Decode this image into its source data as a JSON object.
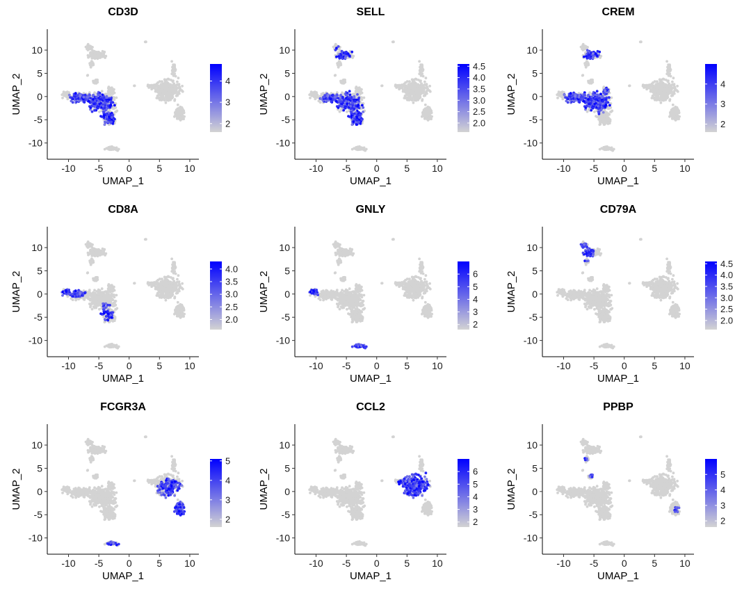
{
  "chart_data": {
    "type": "scatter",
    "subtype": "feature_plot_grid",
    "xlabel": "UMAP_1",
    "ylabel": "UMAP_2",
    "xlim": [
      -13.5,
      11.5
    ],
    "ylim": [
      -13.5,
      14.5
    ],
    "x_ticks": [
      -10,
      -5,
      0,
      5,
      10
    ],
    "y_ticks": [
      10,
      5,
      0,
      -5,
      -10
    ],
    "low_color": "#d3d3d3",
    "high_color": "#0000ff",
    "panels": [
      {
        "gene": "CD3D",
        "min": 1.6,
        "max": 4.8,
        "legend_ticks": [
          2,
          3,
          4
        ],
        "hot": [
          {
            "x": -6.5,
            "y": -2.0,
            "rx": 4.5,
            "ry": 3.5,
            "w": 0.65
          },
          {
            "x": -3.5,
            "y": -4.5,
            "rx": 1.5,
            "ry": 2.0,
            "w": 0.75
          }
        ]
      },
      {
        "gene": "SELL",
        "min": 1.6,
        "max": 4.6,
        "legend_ticks": [
          2.0,
          2.5,
          3.0,
          3.5,
          4.0,
          4.5
        ],
        "hot": [
          {
            "x": -3.5,
            "y": -4.0,
            "rx": 1.6,
            "ry": 3.0,
            "w": 0.85
          },
          {
            "x": -6.0,
            "y": -1.0,
            "rx": 3.5,
            "ry": 2.5,
            "w": 0.5
          },
          {
            "x": -5.5,
            "y": 9.0,
            "rx": 1.8,
            "ry": 2.0,
            "w": 0.45
          }
        ]
      },
      {
        "gene": "CREM",
        "min": 1.6,
        "max": 5.0,
        "legend_ticks": [
          2,
          3,
          4
        ],
        "hot": [
          {
            "x": -6.0,
            "y": -1.0,
            "rx": 4.5,
            "ry": 3.0,
            "w": 0.7
          },
          {
            "x": -5.0,
            "y": 9.0,
            "rx": 2.0,
            "ry": 2.0,
            "w": 0.7
          },
          {
            "x": -3.0,
            "y": 0.0,
            "rx": 1.5,
            "ry": 2.0,
            "w": 0.6
          }
        ]
      },
      {
        "gene": "CD8A",
        "min": 1.6,
        "max": 4.3,
        "legend_ticks": [
          2.0,
          2.5,
          3.0,
          3.5,
          4.0
        ],
        "hot": [
          {
            "x": -9.5,
            "y": 0.3,
            "rx": 2.5,
            "ry": 1.0,
            "w": 0.6
          },
          {
            "x": -4.0,
            "y": -4.0,
            "rx": 1.5,
            "ry": 2.0,
            "w": 0.4
          }
        ]
      },
      {
        "gene": "GNLY",
        "min": 1.6,
        "max": 7.0,
        "legend_ticks": [
          2,
          3,
          4,
          5,
          6
        ],
        "hot": [
          {
            "x": -2.8,
            "y": -11.2,
            "rx": 2.0,
            "ry": 0.8,
            "w": 0.9
          },
          {
            "x": -10.3,
            "y": 0.3,
            "rx": 0.8,
            "ry": 0.8,
            "w": 0.8
          }
        ]
      },
      {
        "gene": "CD79A",
        "min": 1.6,
        "max": 4.6,
        "legend_ticks": [
          2.0,
          2.5,
          3.0,
          3.5,
          4.0,
          4.5
        ],
        "hot": [
          {
            "x": -6.5,
            "y": 9.0,
            "rx": 1.5,
            "ry": 2.2,
            "w": 0.85
          }
        ]
      },
      {
        "gene": "FCGR3A",
        "min": 1.6,
        "max": 5.1,
        "legend_ticks": [
          2,
          3,
          4,
          5
        ],
        "hot": [
          {
            "x": 8.5,
            "y": -4.5,
            "rx": 1.5,
            "ry": 2.0,
            "w": 0.9
          },
          {
            "x": 7.0,
            "y": 0.0,
            "rx": 2.5,
            "ry": 3.0,
            "w": 0.55
          },
          {
            "x": -3.0,
            "y": -11.2,
            "rx": 1.5,
            "ry": 0.7,
            "w": 0.5
          }
        ]
      },
      {
        "gene": "CCL2",
        "min": 1.6,
        "max": 7.0,
        "legend_ticks": [
          2,
          3,
          4,
          5,
          6
        ],
        "hot": [
          {
            "x": 6.5,
            "y": 1.0,
            "rx": 3.5,
            "ry": 3.5,
            "w": 0.9
          }
        ]
      },
      {
        "gene": "PPBP",
        "min": 1.6,
        "max": 6.0,
        "legend_ticks": [
          2,
          3,
          4,
          5
        ],
        "hot": [
          {
            "x": -5.5,
            "y": 3.5,
            "rx": 0.6,
            "ry": 0.8,
            "w": 0.7
          },
          {
            "x": -6.5,
            "y": 7.0,
            "rx": 0.6,
            "ry": 1.0,
            "w": 0.6
          },
          {
            "x": 9.0,
            "y": -4.0,
            "rx": 0.7,
            "ry": 1.0,
            "w": 0.5
          }
        ]
      }
    ]
  }
}
